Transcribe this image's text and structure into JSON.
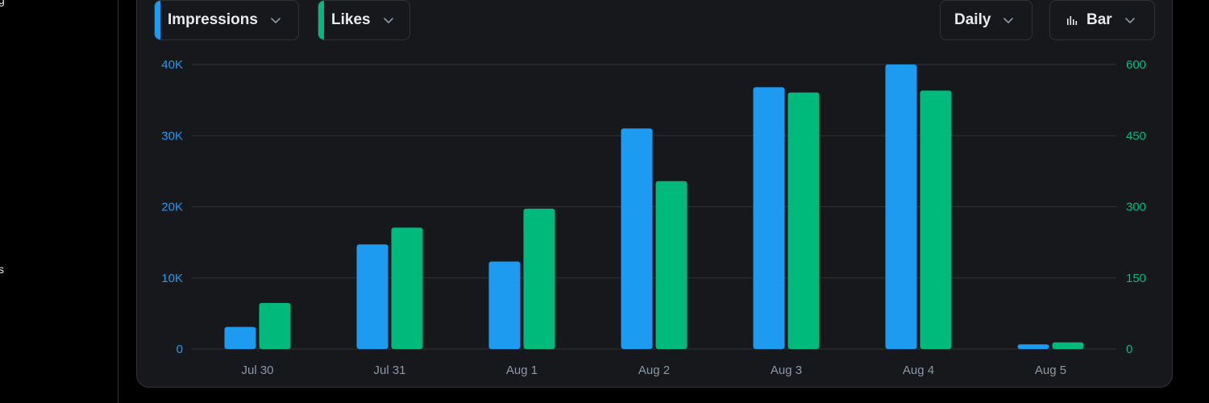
{
  "controls": {
    "metric1": {
      "label": "Impressions",
      "color": "#1d9bf0",
      "icon": "chevron-down-icon"
    },
    "metric2": {
      "label": "Likes",
      "color": "#00ba7c",
      "icon": "chevron-down-icon"
    },
    "granularity": {
      "label": "Daily",
      "icon": "chevron-down-icon"
    },
    "chart_type": {
      "label": "Bar",
      "icon": "bar-chart-icon"
    }
  },
  "chart_data": {
    "type": "bar",
    "categories": [
      "Jul 30",
      "Jul 31",
      "Aug 1",
      "Aug 2",
      "Aug 3",
      "Aug 4",
      "Aug 5"
    ],
    "series": [
      {
        "name": "Impressions",
        "axis": "left",
        "color": "#1d9bf0",
        "values": [
          3100,
          14700,
          12300,
          31000,
          36800,
          40000,
          650
        ]
      },
      {
        "name": "Likes",
        "axis": "right",
        "color": "#00ba7c",
        "values": [
          97,
          256,
          296,
          354,
          541,
          545,
          14
        ]
      }
    ],
    "left_axis": {
      "ticks": [
        "0",
        "10K",
        "20K",
        "30K",
        "40K"
      ],
      "tick_values": [
        0,
        10000,
        20000,
        30000,
        40000
      ],
      "ylim": [
        0,
        40000
      ]
    },
    "right_axis": {
      "ticks": [
        "0",
        "150",
        "300",
        "450",
        "600"
      ],
      "tick_values": [
        0,
        150,
        300,
        450,
        600
      ],
      "ylim": [
        0,
        600
      ]
    },
    "grid": true,
    "legend": "none"
  }
}
